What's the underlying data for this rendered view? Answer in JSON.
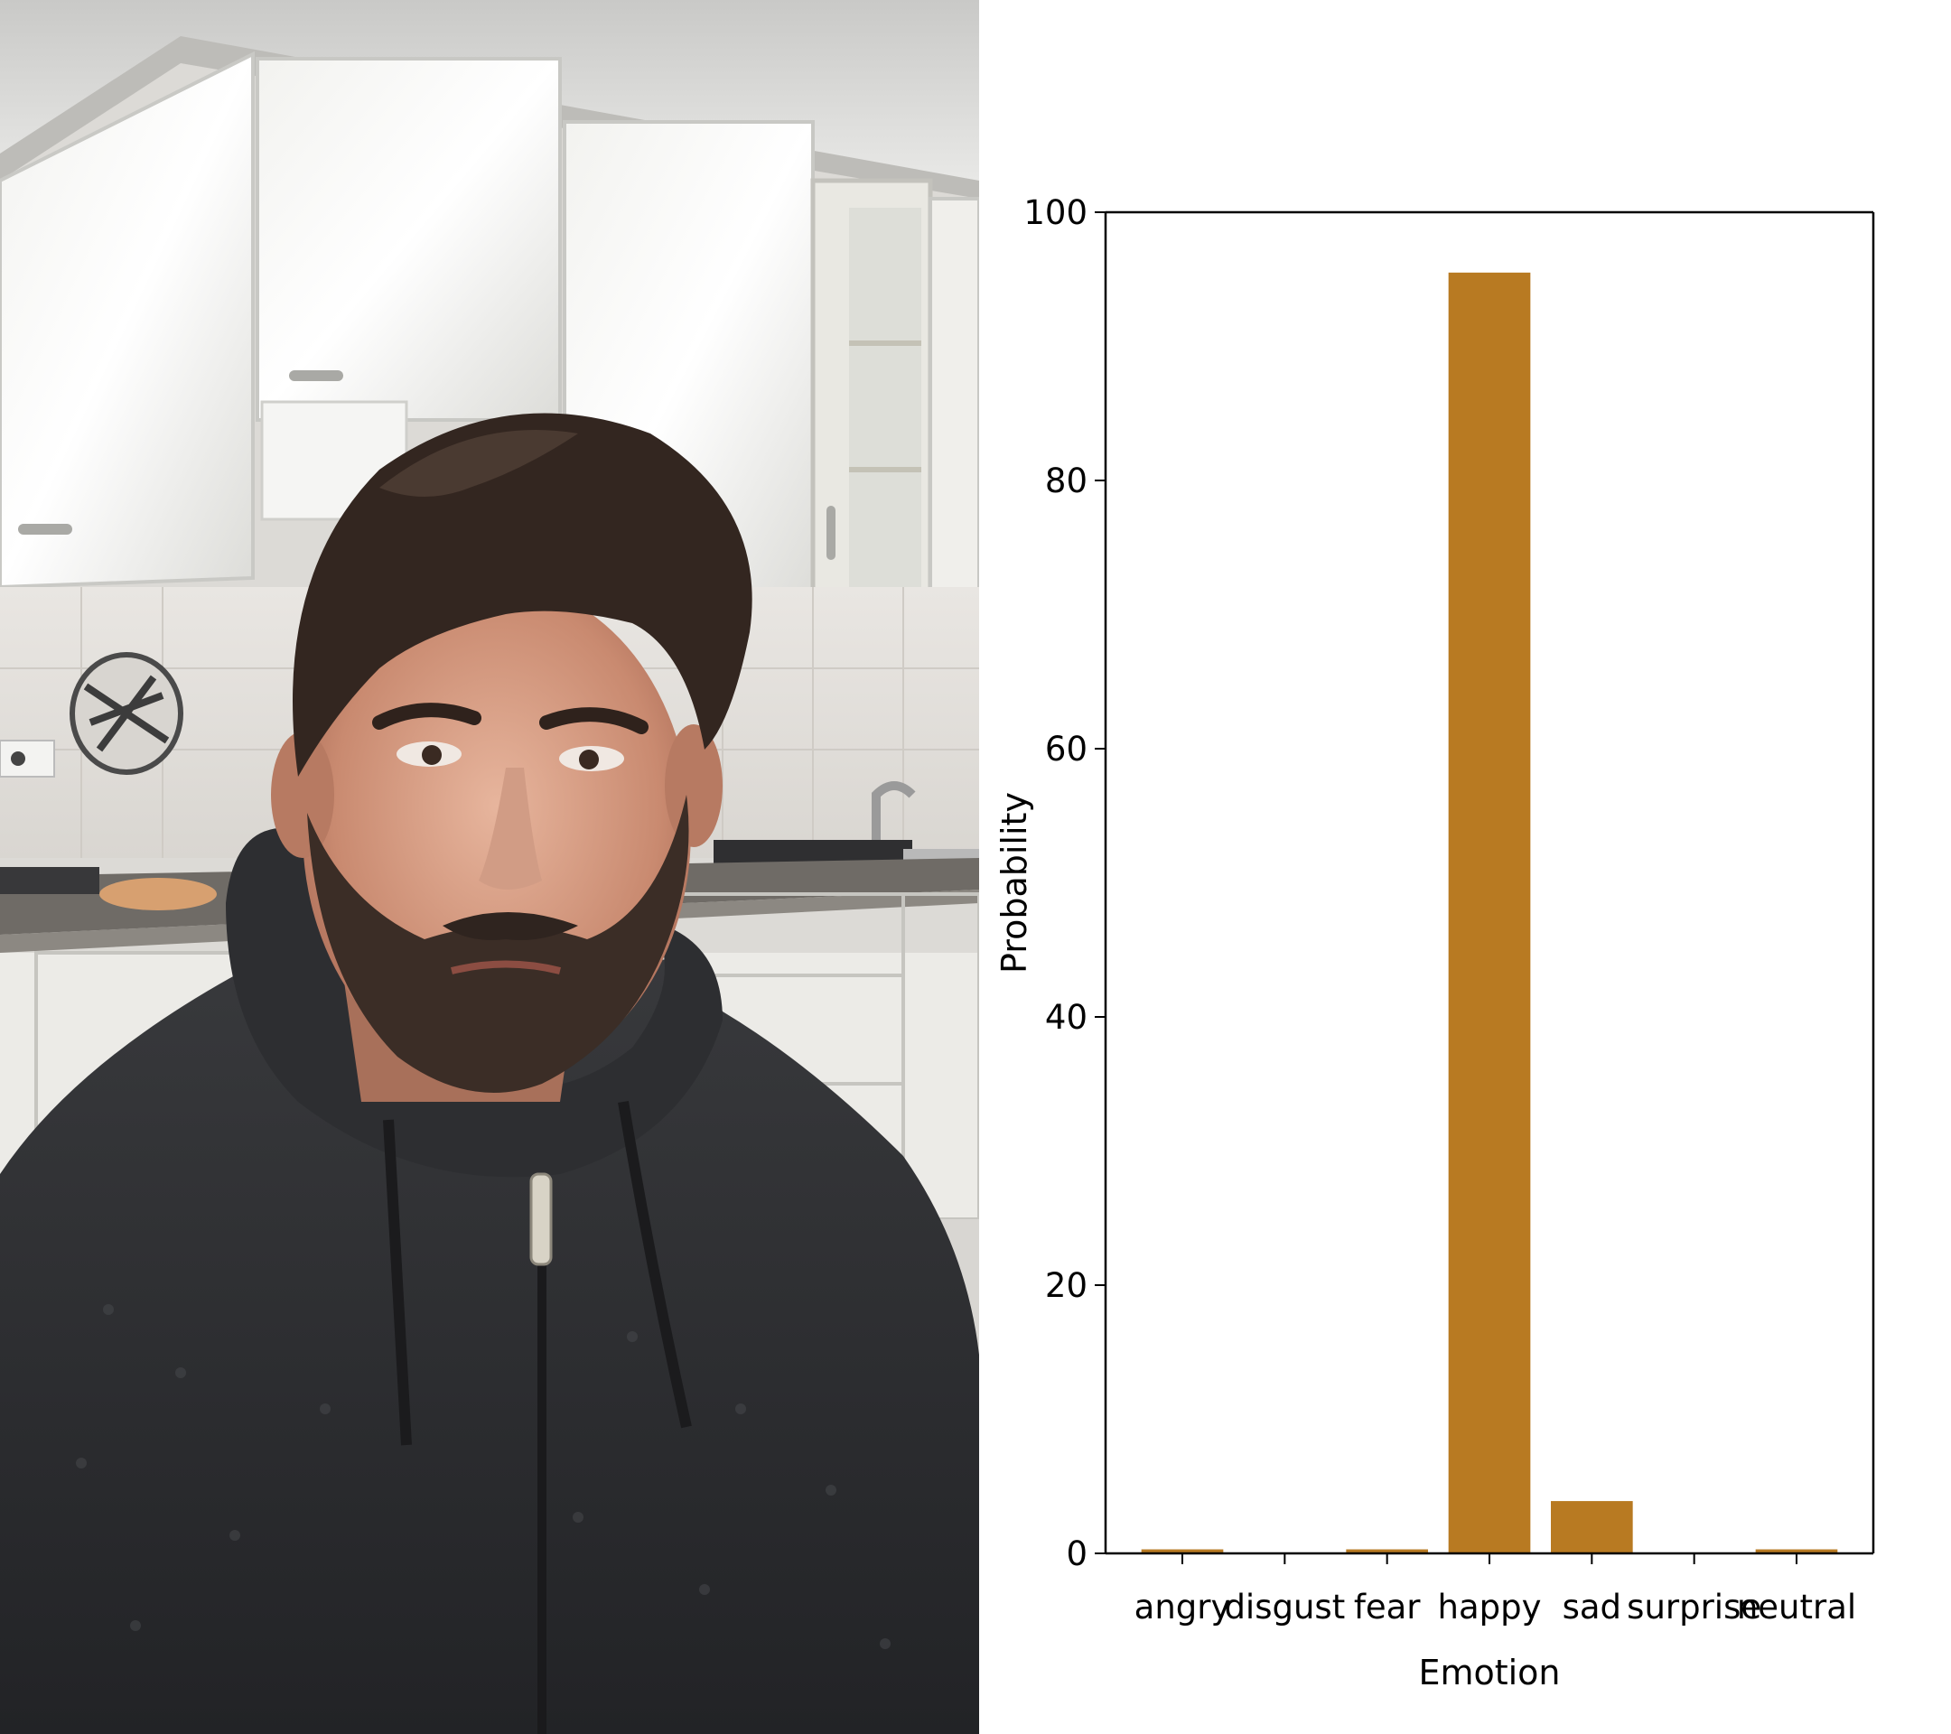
{
  "photo": {
    "subject": "person-portrait-icon"
  },
  "colors": {
    "bar": "#b87a22",
    "axis": "#000000",
    "background": "#ffffff"
  },
  "chart_data": {
    "type": "bar",
    "categories": [
      "angry",
      "disgust",
      "fear",
      "happy",
      "sad",
      "surprise",
      "neutral"
    ],
    "values": [
      0.3,
      0.0,
      0.3,
      95.5,
      3.9,
      0.0,
      0.3
    ],
    "title": "",
    "xlabel": "Emotion",
    "ylabel": "Probability",
    "ylim": [
      0,
      100
    ],
    "yticks": [
      0,
      20,
      40,
      60,
      80,
      100
    ],
    "grid": false,
    "legend": "none"
  }
}
